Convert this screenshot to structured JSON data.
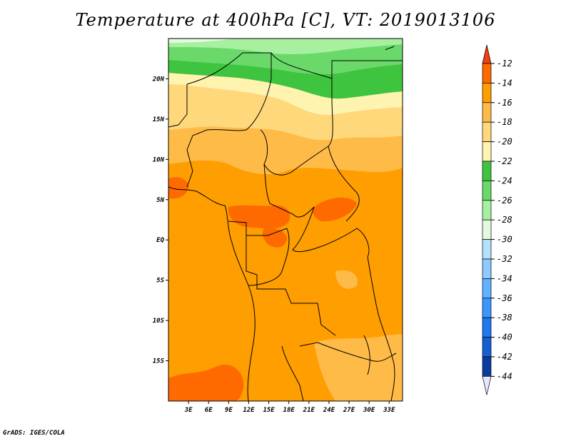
{
  "title": "Temperature at 400hPa [C], VT: 2019013106",
  "credit": "GrADS: IGES/COLA",
  "map": {
    "lat_labels": [
      "20N",
      "15N",
      "10N",
      "5N",
      "EQ",
      "5S",
      "10S",
      "15S"
    ],
    "lon_labels": [
      "3E",
      "6E",
      "9E",
      "12E",
      "15E",
      "18E",
      "21E",
      "24E",
      "27E",
      "30E",
      "33E"
    ],
    "lon_range": [
      0,
      35
    ],
    "lat_range": [
      -20,
      25
    ]
  },
  "colorbar": {
    "labels": [
      "-12",
      "-14",
      "-16",
      "-18",
      "-20",
      "-22",
      "-24",
      "-26",
      "-28",
      "-30",
      "-32",
      "-34",
      "-36",
      "-38",
      "-40",
      "-42",
      "-44"
    ],
    "colors": {
      "above_-12": "#ee4010",
      "-12_-14": "#ff6a00",
      "-14_-16": "#ff9e00",
      "-16_-18": "#ffbb48",
      "-18_-20": "#ffd87c",
      "-20_-22": "#fff3b0",
      "-22_-24": "#3fc43f",
      "-24_-26": "#6ad96a",
      "-26_-28": "#a6f0a0",
      "-28_-30": "#e4fae0",
      "-30_-32": "#b3e2ff",
      "-32_-34": "#8ecaff",
      "-34_-36": "#5fb2ff",
      "-36_-38": "#3c96ff",
      "-38_-40": "#1e78f0",
      "-40_-42": "#1460d2",
      "-42_-44": "#0a3ca0",
      "below_-44": "#e6e6ff"
    }
  }
}
